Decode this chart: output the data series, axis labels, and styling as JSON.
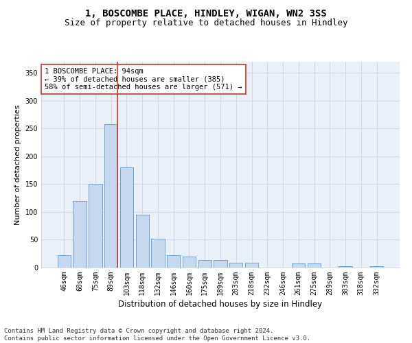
{
  "title1": "1, BOSCOMBE PLACE, HINDLEY, WIGAN, WN2 3SS",
  "title2": "Size of property relative to detached houses in Hindley",
  "xlabel": "Distribution of detached houses by size in Hindley",
  "ylabel": "Number of detached properties",
  "categories": [
    "46sqm",
    "60sqm",
    "75sqm",
    "89sqm",
    "103sqm",
    "118sqm",
    "132sqm",
    "146sqm",
    "160sqm",
    "175sqm",
    "189sqm",
    "203sqm",
    "218sqm",
    "232sqm",
    "246sqm",
    "261sqm",
    "275sqm",
    "289sqm",
    "303sqm",
    "318sqm",
    "332sqm"
  ],
  "values": [
    22,
    120,
    150,
    258,
    180,
    95,
    52,
    22,
    20,
    13,
    13,
    9,
    9,
    0,
    0,
    8,
    8,
    0,
    3,
    0,
    3
  ],
  "bar_color": "#c5d8ed",
  "bar_edge_color": "#5b9bd5",
  "grid_color": "#d0d8e8",
  "background_color": "#eaf0f8",
  "vline_color": "#c0392b",
  "vline_x_index": 3,
  "annotation_text": "1 BOSCOMBE PLACE: 94sqm\n← 39% of detached houses are smaller (385)\n58% of semi-detached houses are larger (571) →",
  "annotation_box_color": "#ffffff",
  "annotation_box_edge": "#c0392b",
  "ylim": [
    0,
    370
  ],
  "yticks": [
    0,
    50,
    100,
    150,
    200,
    250,
    300,
    350
  ],
  "footer": "Contains HM Land Registry data © Crown copyright and database right 2024.\nContains public sector information licensed under the Open Government Licence v3.0.",
  "title1_fontsize": 10,
  "title2_fontsize": 9,
  "xlabel_fontsize": 8.5,
  "ylabel_fontsize": 8,
  "tick_fontsize": 7,
  "annotation_fontsize": 7.5,
  "footer_fontsize": 6.5
}
